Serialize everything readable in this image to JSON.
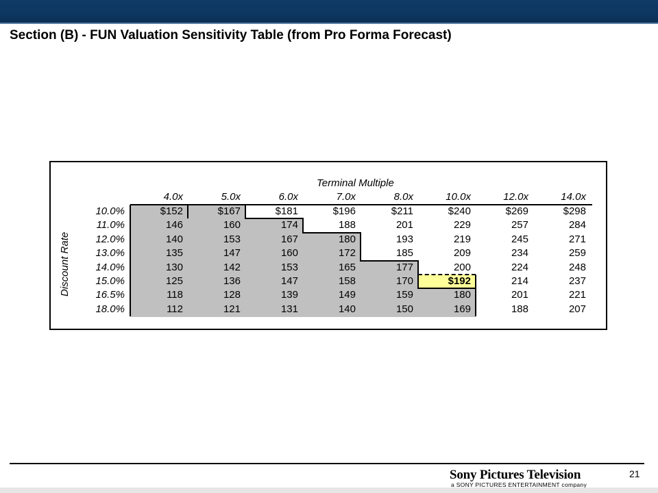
{
  "slide": {
    "title": "Section (B) - FUN Valuation Sensitivity Table (from Pro Forma Forecast)",
    "page_number": "21",
    "logo": "Sony Pictures Television",
    "logo_subtitle": "a SONY PICTURES ENTERTAINMENT company"
  },
  "table": {
    "col_axis_label": "Terminal Multiple",
    "row_axis_label": "Discount Rate",
    "columns": [
      "4.0x",
      "5.0x",
      "6.0x",
      "7.0x",
      "8.0x",
      "10.0x",
      "12.0x",
      "14.0x"
    ],
    "rows": [
      "10.0%",
      "11.0%",
      "12.0%",
      "13.0%",
      "14.0%",
      "15.0%",
      "16.5%",
      "18.0%"
    ],
    "values": [
      [
        "$152",
        "$167",
        "$181",
        "$196",
        "$211",
        "$240",
        "$269",
        "$298"
      ],
      [
        "146",
        "160",
        "174",
        "188",
        "201",
        "229",
        "257",
        "284"
      ],
      [
        "140",
        "153",
        "167",
        "180",
        "193",
        "219",
        "245",
        "271"
      ],
      [
        "135",
        "147",
        "160",
        "172",
        "185",
        "209",
        "234",
        "259"
      ],
      [
        "130",
        "142",
        "153",
        "165",
        "177",
        "200",
        "224",
        "248"
      ],
      [
        "125",
        "136",
        "147",
        "158",
        "170",
        "$192",
        "214",
        "237"
      ],
      [
        "118",
        "128",
        "139",
        "149",
        "159",
        "180",
        "201",
        "221"
      ],
      [
        "112",
        "121",
        "131",
        "140",
        "150",
        "169",
        "188",
        "207"
      ]
    ],
    "highlight": {
      "row": 5,
      "col": 5,
      "color": "#ffff99"
    },
    "shade_color": "#c0c0c0",
    "shaded_cols_per_row": [
      2,
      3,
      4,
      4,
      5,
      5,
      6,
      6
    ]
  }
}
